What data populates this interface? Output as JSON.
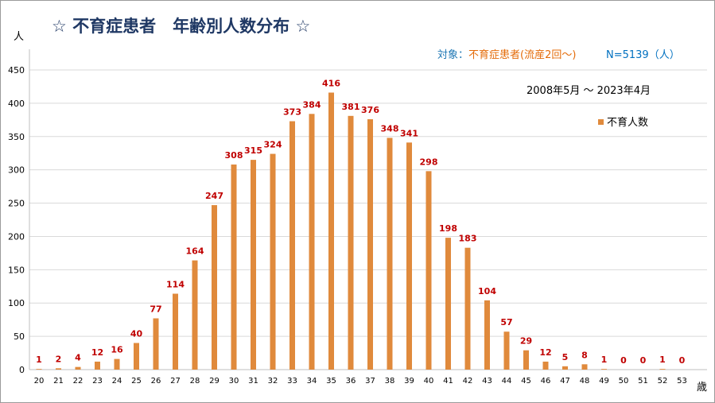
{
  "chart_data": {
    "type": "bar",
    "title": "☆ 不育症患者　年齢別人数分布 ☆",
    "ylabel": "人",
    "xlabel": "歳",
    "subtitle_prefix": "対象：",
    "subtitle_value": "不育症患者(流産2回～)",
    "n_label": "N=5139（人）",
    "period": "2008年5月 ～ 2023年4月",
    "legend": "不育人数",
    "legend_position": "top-right",
    "bar_color": "#e08a3c",
    "label_color": "#c00000",
    "title_color": "#1f3864",
    "grid": true,
    "ylim": [
      0,
      450
    ],
    "yticks": [
      0,
      50,
      100,
      150,
      200,
      250,
      300,
      350,
      400,
      450
    ],
    "categories": [
      "20",
      "21",
      "22",
      "23",
      "24",
      "25",
      "26",
      "27",
      "28",
      "29",
      "30",
      "31",
      "32",
      "33",
      "34",
      "35",
      "36",
      "37",
      "38",
      "39",
      "40",
      "41",
      "42",
      "43",
      "44",
      "45",
      "46",
      "47",
      "48",
      "49",
      "50",
      "51",
      "52",
      "53"
    ],
    "series": [
      {
        "name": "不育人数",
        "values": [
          1,
          2,
          4,
          12,
          16,
          40,
          77,
          114,
          164,
          247,
          308,
          315,
          324,
          373,
          384,
          416,
          381,
          376,
          348,
          341,
          298,
          198,
          183,
          104,
          57,
          29,
          12,
          5,
          8,
          1,
          0,
          0,
          1,
          0
        ]
      }
    ]
  }
}
